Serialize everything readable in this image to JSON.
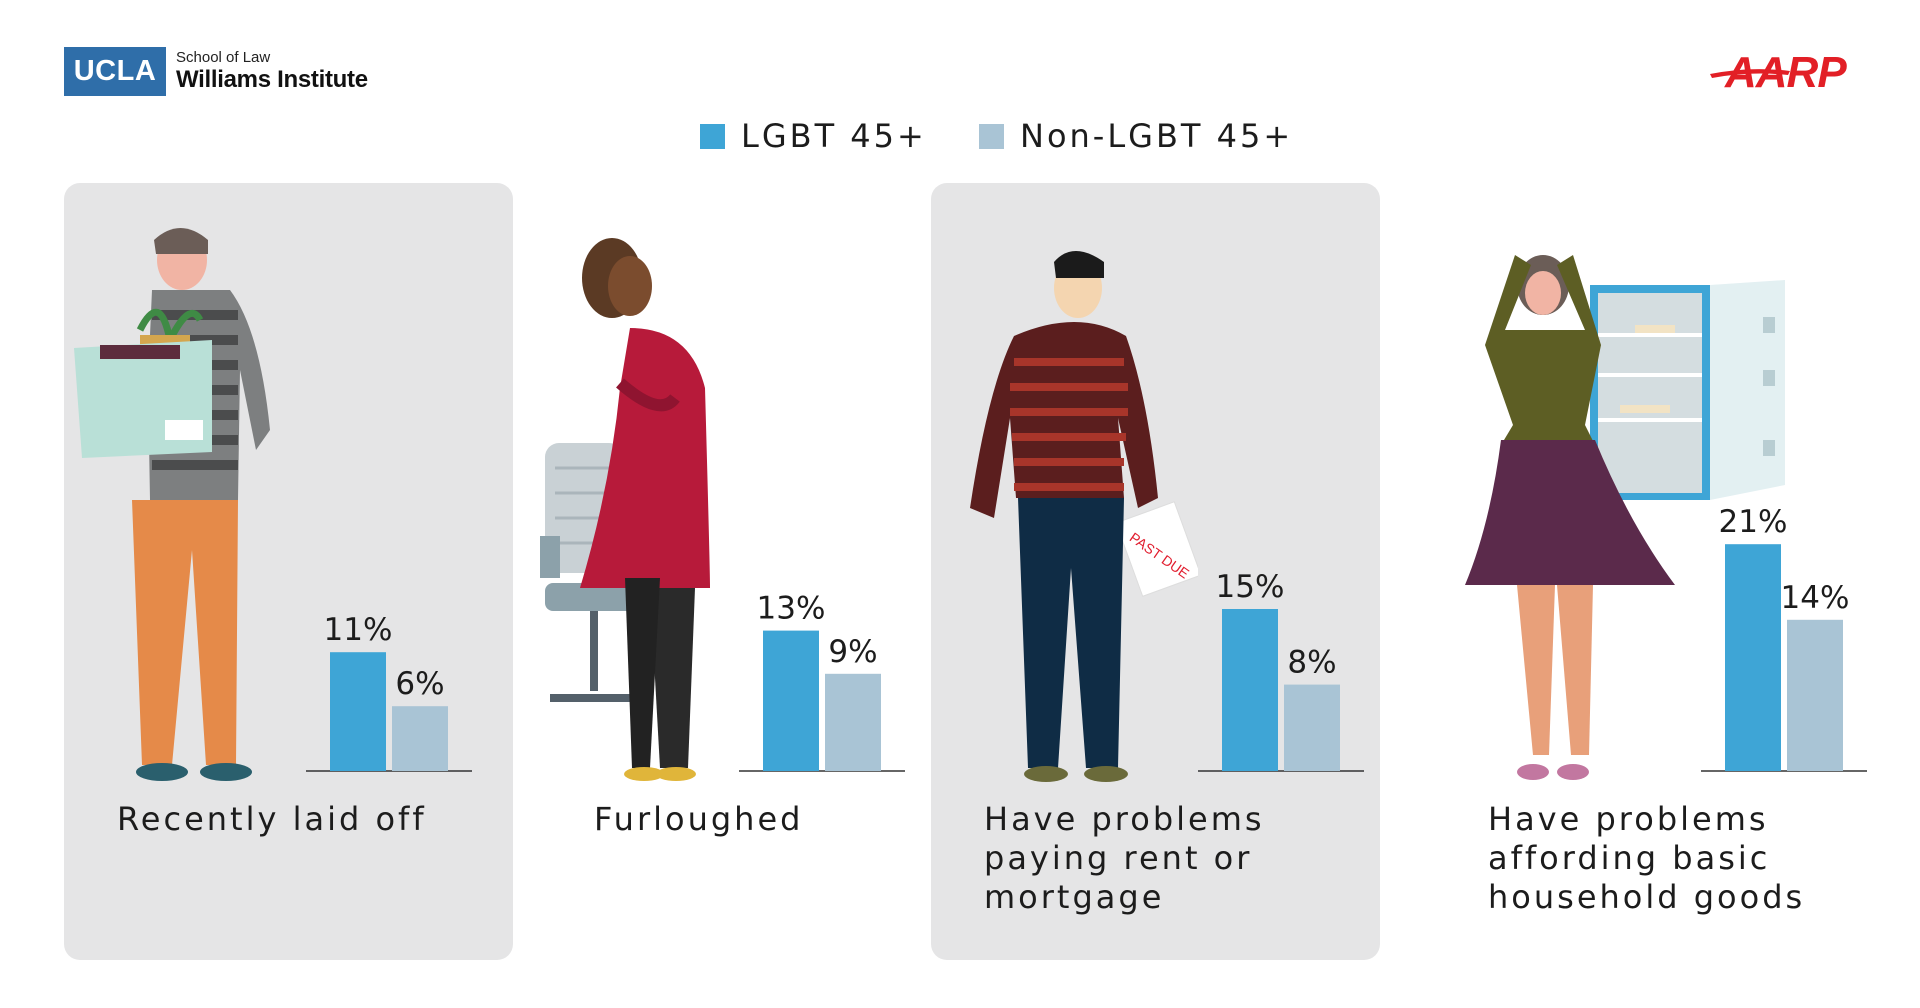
{
  "header": {
    "ucla_logo": "UCLA",
    "school_line": "School of Law",
    "institute_line": "Williams Institute",
    "aarp_logo": "AARP"
  },
  "colors": {
    "lgbt": "#3ea5d6",
    "non_lgbt": "#a9c4d5",
    "panel": "#e5e5e6",
    "aarp_red": "#e21f26",
    "ucla_blue": "#2f6ea9"
  },
  "illustrations": [
    "man-holding-box",
    "woman-with-office-chair",
    "man-holding-past-due-bill",
    "woman-at-empty-fridge"
  ],
  "bill_text": "PAST DUE",
  "chart_data": {
    "type": "bar",
    "legend": [
      "LGBT 45+",
      "Non-LGBT 45+"
    ],
    "legend_position": "top-center",
    "categories": [
      "Recently laid off",
      "Furloughed",
      "Have problems paying rent or mortgage",
      "Have problems affording basic household goods"
    ],
    "category_lines": [
      [
        "Recently laid off"
      ],
      [
        "Furloughed"
      ],
      [
        "Have problems",
        "paying rent or",
        "mortgage"
      ],
      [
        "Have problems",
        "affording basic",
        "household goods"
      ]
    ],
    "series": [
      {
        "name": "LGBT 45+",
        "values": [
          11,
          13,
          15,
          21
        ],
        "labels": [
          "11%",
          "13%",
          "15%",
          "21%"
        ]
      },
      {
        "name": "Non-LGBT 45+",
        "values": [
          6,
          9,
          8,
          14
        ],
        "labels": [
          "6%",
          "9%",
          "8%",
          "14%"
        ]
      }
    ],
    "unit": "%",
    "grid": false
  }
}
